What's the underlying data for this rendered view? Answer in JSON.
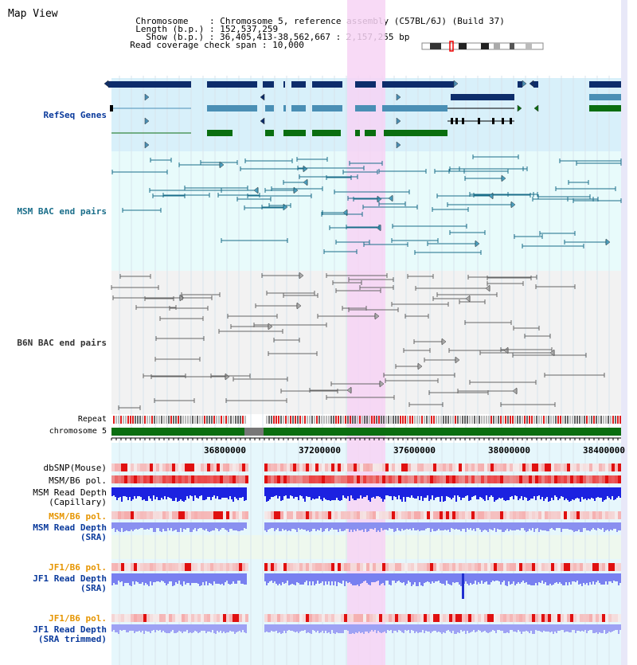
{
  "title": "Map View",
  "header": {
    "chromosome_label": "Chromosome",
    "chromosome_value": "Chromosome 5, reference assembly (C57BL/6J) (Build 37)",
    "length_label": "Length (b.p.)",
    "length_value": "152,537,259",
    "show_label": "Show (b.p.)",
    "show_value": "36,405,413-38,562,667 : 2,157,255 bp",
    "coverage_label": "Read coverage check span",
    "coverage_value": "10,000"
  },
  "tracks": {
    "refseq": "RefSeq Genes",
    "msm_bac": "MSM BAC end pairs",
    "b6n_bac": "B6N BAC end pairs",
    "repeat": "Repeat",
    "chromosome": "chromosome 5",
    "dbsnp": "dbSNP(Mouse)",
    "msm_b6_pol": "MSM/B6 pol.",
    "msm_depth_cap_1": "MSM Read Depth",
    "msm_depth_cap_2": "(Capillary)",
    "msm_b6_pol_sra": "MSM/B6 pol.",
    "msm_depth_sra_1": "MSM Read Depth",
    "msm_depth_sra_2": "(SRA)",
    "jf1_b6_pol": "JF1/B6 pol.",
    "jf1_depth_1": "JF1 Read Depth",
    "jf1_depth_2": "(SRA)",
    "jf1_b6_pol_trim": "JF1/B6 pol.",
    "jf1_trim_1": "JF1 Read Depth",
    "jf1_trim_2": "(SRA trimmed)"
  },
  "axis": {
    "ticks": [
      "36800000",
      "37200000",
      "37600000",
      "38000000",
      "38400000"
    ]
  },
  "colors": {
    "refseq_dark": "#0d2d6b",
    "refseq_mid": "#4a8fb5",
    "refseq_green": "#0a6e10",
    "msm_bac": "#1a6e8a",
    "b6n_bac": "#666666",
    "highlight": "#f5d0f0",
    "chromosome": "#0a6e10",
    "label_blue": "#0a3a9c",
    "label_teal": "#1a6e8a",
    "label_orange": "#e69500",
    "label_gray": "#333333"
  }
}
